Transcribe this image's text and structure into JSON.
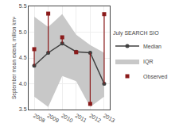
{
  "chart_data": {
    "type": "line",
    "ylabel": "September mean extent, million km²",
    "legend_title": "July SEARCH SIO",
    "legend": "right",
    "x": [
      2008,
      2009,
      2010,
      2011,
      2012,
      2013
    ],
    "xlim": [
      2007.6,
      2013.4
    ],
    "xticks": [
      2008,
      2009,
      2010,
      2011,
      2012,
      2013
    ],
    "ylim": [
      3.5,
      5.5
    ],
    "yticks": [
      3.5,
      {
        "value": 4,
        "label": "4.0"
      },
      4.5,
      {
        "value": 5,
        "label": "5.0"
      },
      5.5
    ],
    "series": [
      {
        "name": "Median",
        "type": "line",
        "color": "#404040",
        "marker": "circle",
        "values": [
          4.35,
          4.6,
          4.78,
          4.62,
          4.6,
          4.0
        ]
      },
      {
        "name": "IQR",
        "type": "area",
        "color": "#c8c8c8",
        "low": [
          3.75,
          3.55,
          4.15,
          4.05,
          3.55,
          3.75
        ],
        "high": [
          5.3,
          5.1,
          5.35,
          4.95,
          4.75,
          4.6
        ]
      },
      {
        "name": "Observed",
        "type": "scatter",
        "color": "#8b1a1a",
        "marker": "square",
        "values": [
          4.67,
          5.36,
          4.9,
          4.61,
          3.61,
          5.35
        ]
      }
    ]
  }
}
